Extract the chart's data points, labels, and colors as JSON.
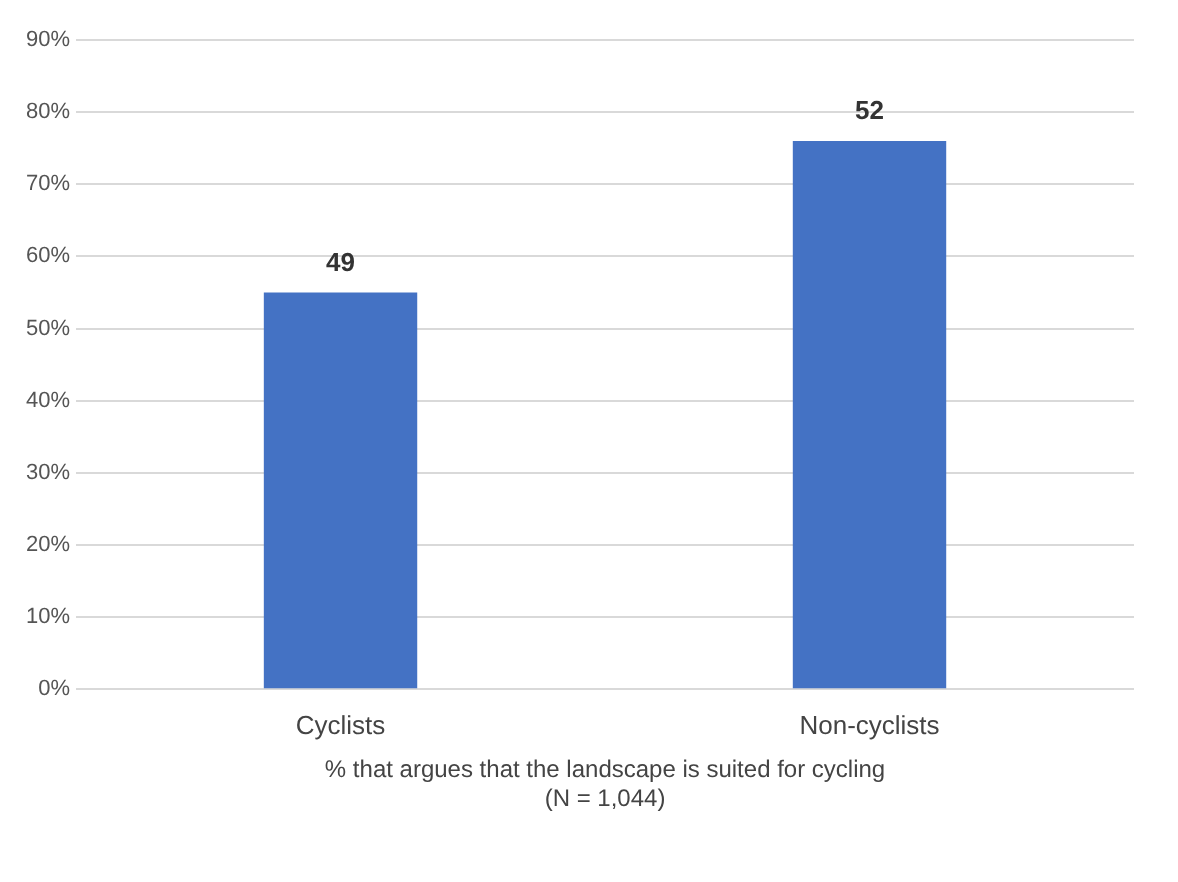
{
  "chart_data": {
    "type": "bar",
    "categories": [
      "Cyclists",
      "Non-cyclists"
    ],
    "values": [
      55,
      76
    ],
    "color": "#4472c4",
    "annotations": [
      {
        "text": "49",
        "x": "Cyclists",
        "y": 55
      },
      {
        "text": "52",
        "x": "Non-cyclists",
        "y": 76
      }
    ],
    "xlabel": "% that argues that the landscape is suited for cycling\n(N = 1,044)",
    "ylim": [
      0,
      90
    ],
    "yticks": [
      {
        "value": 0,
        "label": "0%"
      },
      {
        "value": 10,
        "label": "10%"
      },
      {
        "value": 20,
        "label": "20%"
      },
      {
        "value": 30,
        "label": "30%"
      },
      {
        "value": 40,
        "label": "40%"
      },
      {
        "value": 50,
        "label": "50%"
      },
      {
        "value": 60,
        "label": "60%"
      },
      {
        "value": 70,
        "label": "70%"
      },
      {
        "value": 80,
        "label": "80%"
      },
      {
        "value": 90,
        "label": "90%"
      }
    ],
    "grid": "y",
    "legend": false
  }
}
